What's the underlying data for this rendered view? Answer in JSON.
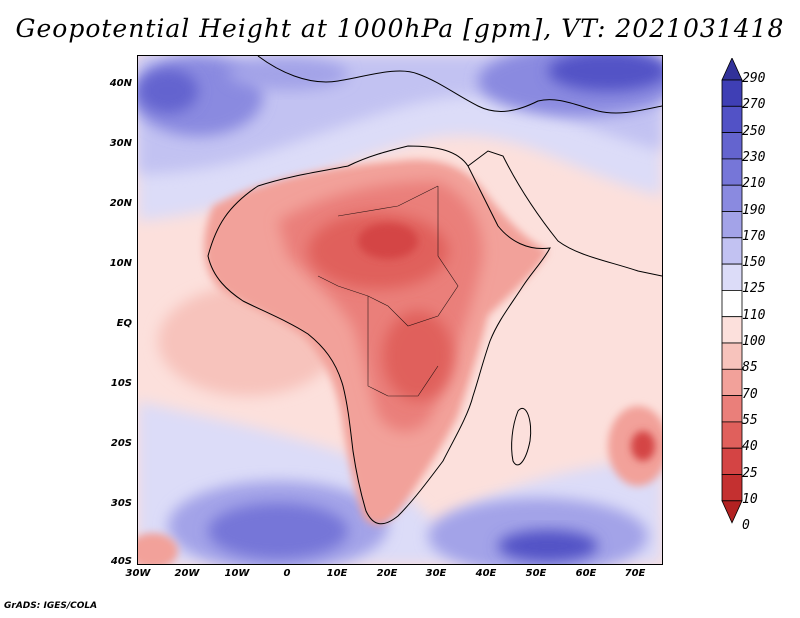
{
  "title": "Geopotential Height at 1000hPa [gpm], VT: 2021031418",
  "credit": "GrADS: IGES/COLA",
  "y_axis_labels": [
    "40N",
    "30N",
    "20N",
    "10N",
    "EQ",
    "10S",
    "20S",
    "30S",
    "40S"
  ],
  "x_axis_labels": [
    "30W",
    "20W",
    "10W",
    "0",
    "10E",
    "20E",
    "30E",
    "40E",
    "50E",
    "60E",
    "70E"
  ],
  "colorbar": {
    "labels": [
      "290",
      "270",
      "250",
      "230",
      "210",
      "190",
      "170",
      "150",
      "125",
      "110",
      "100",
      "85",
      "70",
      "55",
      "40",
      "25",
      "10",
      "0"
    ],
    "colors": [
      "#32329a",
      "#3f3fb5",
      "#5252c6",
      "#6464cf",
      "#7676d8",
      "#8a8ae0",
      "#a3a3e8",
      "#c2c2f2",
      "#dcdcf8",
      "#ffffff",
      "#fce0dc",
      "#f7c3bc",
      "#f2a19a",
      "#ea7f7a",
      "#e0605c",
      "#d44444",
      "#c43030",
      "#b22222"
    ]
  },
  "map": {
    "variable": "Geopotential Height",
    "level": "1000hPa",
    "units": "gpm",
    "valid_time": "2021031418",
    "lon_range": [
      "30W",
      "75E"
    ],
    "lat_range": [
      "40S",
      "45N"
    ]
  }
}
